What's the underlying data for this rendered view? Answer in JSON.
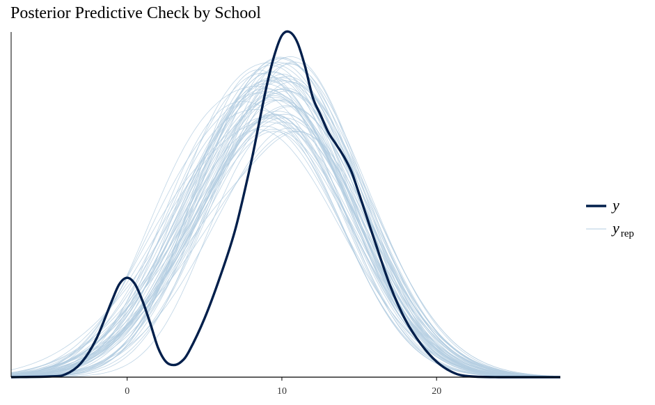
{
  "chart_data": {
    "type": "line",
    "title": "Posterior Predictive Check by School",
    "xlabel": "",
    "ylabel": "",
    "xlim": [
      -7.5,
      28
    ],
    "ylim": [
      0,
      0.1
    ],
    "x_ticks": [
      "0",
      "10",
      "20"
    ],
    "x_tick_values": [
      0,
      10,
      20
    ],
    "y_axis_ticks": false,
    "grid": false,
    "legend": {
      "placement": "right",
      "entries": [
        {
          "label": "y",
          "subscript": "",
          "color": "#011f4b",
          "style": "thick"
        },
        {
          "label": "y",
          "subscript": "rep",
          "color": "#b3cde0",
          "style": "thin"
        }
      ]
    },
    "series": [
      {
        "role": "y",
        "color": "#011f4b",
        "x": [
          -7.5,
          -5,
          -4,
          -3,
          -2,
          -1,
          -0.5,
          0,
          0.5,
          1,
          1.5,
          2,
          2.5,
          3,
          3.5,
          4,
          5,
          6,
          7,
          8,
          8.5,
          9,
          9.5,
          10,
          10.5,
          11,
          11.5,
          12,
          12.5,
          13,
          13.5,
          14,
          14.5,
          15,
          16,
          17,
          18,
          19,
          20,
          21,
          22,
          24,
          28
        ],
        "values": [
          0,
          0.0002,
          0.0008,
          0.004,
          0.011,
          0.022,
          0.027,
          0.0288,
          0.027,
          0.022,
          0.0155,
          0.0085,
          0.0045,
          0.0035,
          0.0045,
          0.0075,
          0.017,
          0.029,
          0.043,
          0.062,
          0.073,
          0.084,
          0.093,
          0.099,
          0.1,
          0.097,
          0.09,
          0.081,
          0.076,
          0.071,
          0.0675,
          0.064,
          0.0595,
          0.053,
          0.0395,
          0.0265,
          0.0165,
          0.0095,
          0.0045,
          0.0015,
          0.0003,
          0,
          0
        ]
      }
    ],
    "replicates": {
      "label": "yrep",
      "color": "#b3cde0",
      "count": 60,
      "approx_mean": 10.6,
      "approx_sd": 4.6,
      "peak_density_range": [
        0.071,
        0.093
      ]
    }
  }
}
